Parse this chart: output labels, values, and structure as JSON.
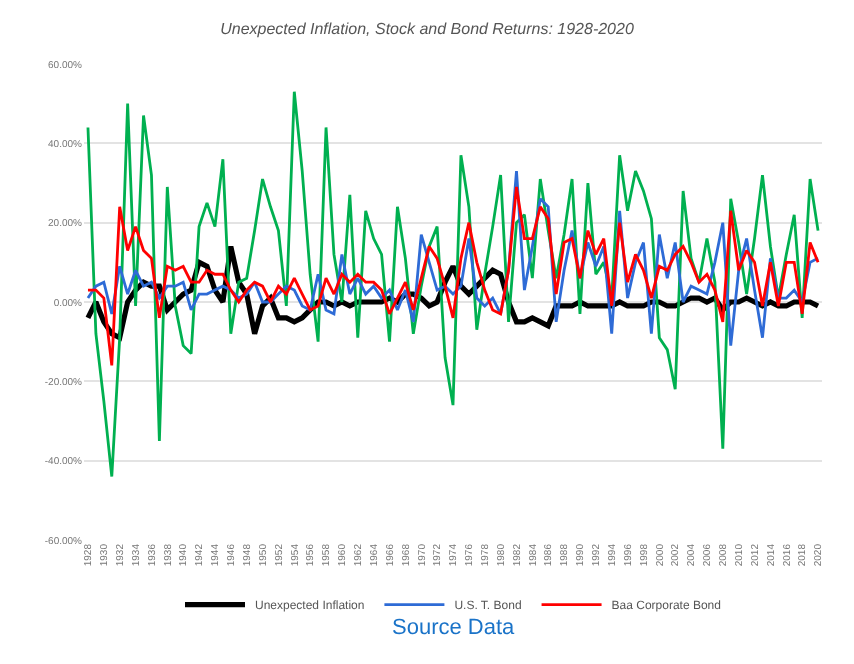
{
  "chart_data": {
    "type": "line",
    "title": "Unexpected Inflation, Stock and Bond Returns: 1928-2020",
    "x": [
      1928,
      1929,
      1930,
      1931,
      1932,
      1933,
      1934,
      1935,
      1936,
      1937,
      1938,
      1939,
      1940,
      1941,
      1942,
      1943,
      1944,
      1945,
      1946,
      1947,
      1948,
      1949,
      1950,
      1951,
      1952,
      1953,
      1954,
      1955,
      1956,
      1957,
      1958,
      1959,
      1960,
      1961,
      1962,
      1963,
      1964,
      1965,
      1966,
      1967,
      1968,
      1969,
      1970,
      1971,
      1972,
      1973,
      1974,
      1975,
      1976,
      1977,
      1978,
      1979,
      1980,
      1981,
      1982,
      1983,
      1984,
      1985,
      1986,
      1987,
      1988,
      1989,
      1990,
      1991,
      1992,
      1993,
      1994,
      1995,
      1996,
      1997,
      1998,
      1999,
      2000,
      2001,
      2002,
      2003,
      2004,
      2005,
      2006,
      2007,
      2008,
      2009,
      2010,
      2011,
      2012,
      2013,
      2014,
      2015,
      2016,
      2017,
      2018,
      2019,
      2020
    ],
    "series": [
      {
        "name": "Unexpected Inflation",
        "color": "#000000",
        "values": [
          -4,
          0,
          -5,
          -8,
          -9,
          0,
          3,
          5,
          4,
          4,
          -2,
          0,
          2,
          3,
          10,
          9,
          3,
          0,
          14,
          5,
          2,
          -8,
          -1,
          1,
          -4,
          -4,
          -5,
          -4,
          -2,
          0,
          0,
          -1,
          0,
          -1,
          0,
          0,
          0,
          0,
          1,
          0,
          2,
          2,
          1,
          -1,
          0,
          5,
          9,
          4,
          2,
          4,
          6,
          8,
          7,
          0,
          -5,
          -5,
          -4,
          -5,
          -6,
          -1,
          -1,
          -1,
          0,
          -1,
          -1,
          -1,
          -1,
          0,
          -1,
          -1,
          -1,
          0,
          0,
          -1,
          -1,
          0,
          1,
          1,
          0,
          1,
          -2,
          0,
          0,
          1,
          0,
          -1,
          0,
          -1,
          -1,
          0,
          0,
          0,
          -1
        ]
      },
      {
        "color": "#00b050",
        "values": [
          44,
          -8,
          -25,
          -44,
          -9,
          50,
          -1,
          47,
          32,
          -35,
          29,
          -1,
          -11,
          -13,
          19,
          25,
          19,
          36,
          -8,
          5,
          6,
          18,
          31,
          24,
          18,
          -1,
          53,
          33,
          7,
          -10,
          44,
          12,
          0,
          27,
          -9,
          23,
          16,
          12,
          -10,
          24,
          11,
          -8,
          4,
          14,
          19,
          -14,
          -26,
          37,
          24,
          -7,
          7,
          19,
          32,
          -5,
          20,
          22,
          6,
          31,
          18,
          6,
          17,
          31,
          -3,
          30,
          7,
          10,
          1,
          37,
          23,
          33,
          28,
          21,
          -9,
          -12,
          -22,
          28,
          11,
          5,
          16,
          5,
          -37,
          26,
          15,
          2,
          16,
          32,
          14,
          1,
          12,
          22,
          -4,
          31,
          18
        ]
      },
      {
        "name": "U.S. T. Bond",
        "color": "#2e6bd6",
        "values": [
          1,
          4,
          5,
          -3,
          9,
          2,
          8,
          4,
          5,
          1,
          4,
          4,
          5,
          -2,
          2,
          2,
          3,
          4,
          3,
          1,
          2,
          5,
          0,
          0,
          2,
          4,
          3,
          -1,
          -2,
          7,
          -2,
          -3,
          12,
          2,
          6,
          2,
          4,
          1,
          3,
          -2,
          3,
          -5,
          17,
          10,
          3,
          4,
          2,
          4,
          16,
          1,
          -1,
          1,
          -3,
          8,
          33,
          3,
          14,
          26,
          24,
          -5,
          8,
          18,
          6,
          15,
          9,
          14,
          -8,
          23,
          1,
          10,
          15,
          -8,
          17,
          6,
          15,
          0,
          4,
          3,
          2,
          10,
          20,
          -11,
          8,
          16,
          3,
          -9,
          11,
          1,
          1,
          3,
          0,
          10,
          11
        ]
      },
      {
        "name": "Baa Corporate Bond",
        "color": "#ff0000",
        "values": [
          3,
          3,
          1,
          -16,
          24,
          13,
          19,
          13,
          11,
          -4,
          9,
          8,
          9,
          5,
          5,
          8,
          7,
          7,
          3,
          0,
          3,
          5,
          4,
          0,
          4,
          2,
          6,
          2,
          -2,
          -1,
          6,
          2,
          7,
          5,
          7,
          5,
          5,
          3,
          -3,
          1,
          5,
          -2,
          6,
          14,
          11,
          4,
          -4,
          11,
          20,
          10,
          3,
          -2,
          -3,
          8,
          29,
          16,
          16,
          24,
          21,
          2,
          15,
          16,
          6,
          18,
          12,
          16,
          -1,
          20,
          5,
          12,
          8,
          1,
          9,
          8,
          12,
          14,
          10,
          5,
          7,
          3,
          -5,
          23,
          8,
          13,
          10,
          -1,
          10,
          -1,
          10,
          10,
          -3,
          15,
          10
        ]
      }
    ],
    "xlim": [
      1927.5,
      2020.5
    ],
    "xticks": [
      1928,
      1930,
      1932,
      1934,
      1936,
      1938,
      1940,
      1942,
      1944,
      1946,
      1948,
      1950,
      1952,
      1954,
      1956,
      1958,
      1960,
      1962,
      1964,
      1966,
      1968,
      1970,
      1972,
      1974,
      1976,
      1978,
      1980,
      1982,
      1984,
      1986,
      1988,
      1990,
      1992,
      1994,
      1996,
      1998,
      2000,
      2002,
      2004,
      2006,
      2008,
      2010,
      2012,
      2014,
      2016,
      2018,
      2020
    ],
    "ylim": [
      -60,
      60
    ],
    "yticks": [
      {
        "value": -60,
        "label": "-60.00%"
      },
      {
        "value": -40,
        "label": "-40.00%"
      },
      {
        "value": -20,
        "label": "-20.00%"
      },
      {
        "value": 0,
        "label": "0.00%"
      },
      {
        "value": 20,
        "label": "20.00%"
      },
      {
        "value": 40,
        "label": "40.00%"
      },
      {
        "value": 60,
        "label": "60.00%"
      }
    ],
    "grid": "y",
    "legend": "bottom",
    "marker": "none",
    "line_style": "solid",
    "annotations": [
      "Source Data"
    ]
  }
}
